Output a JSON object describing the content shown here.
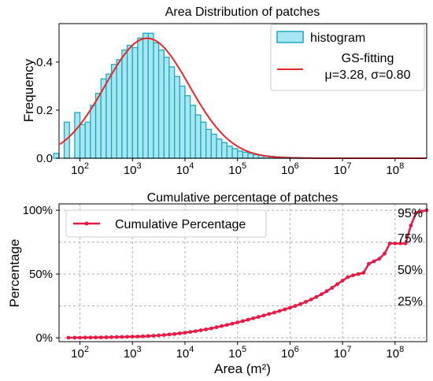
{
  "chart_data": [
    {
      "type": "bar",
      "title": "Area Distribution of patches",
      "ylabel": "Frequency",
      "xscale": "log",
      "xlim": [
        40,
        400000000
      ],
      "ylim": [
        0,
        0.56
      ],
      "xticks": [
        "10^2",
        "10^3",
        "10^4",
        "10^5",
        "10^6",
        "10^7",
        "10^8"
      ],
      "yticks": [
        "0.0",
        "0.2",
        "0.4"
      ],
      "legend_position": "top-right",
      "series": [
        {
          "name": "histogram",
          "color": "#a8e6f2",
          "edge_color": "#1aa9bf",
          "bin_log10_edges": [
            1.5,
            1.6,
            1.7,
            1.8,
            1.9,
            2.0,
            2.1,
            2.2,
            2.3,
            2.4,
            2.5,
            2.6,
            2.7,
            2.8,
            2.9,
            3.0,
            3.1,
            3.2,
            3.3,
            3.4,
            3.5,
            3.6,
            3.7,
            3.8,
            3.9,
            4.0,
            4.1,
            4.2,
            4.3,
            4.4,
            4.5,
            4.6,
            4.7,
            4.8,
            4.9,
            5.0,
            5.1,
            5.2,
            5.3,
            5.4,
            5.5,
            5.6,
            5.7,
            5.8,
            5.9,
            6.0,
            6.1,
            6.2,
            6.3,
            6.4,
            6.5,
            6.6,
            6.7
          ],
          "values": [
            0.02,
            0.0,
            0.15,
            0.0,
            0.19,
            0.14,
            0.15,
            0.22,
            0.27,
            0.33,
            0.35,
            0.39,
            0.41,
            0.45,
            0.47,
            0.46,
            0.5,
            0.52,
            0.52,
            0.48,
            0.45,
            0.42,
            0.38,
            0.34,
            0.3,
            0.26,
            0.22,
            0.18,
            0.15,
            0.12,
            0.1,
            0.08,
            0.065,
            0.05,
            0.04,
            0.03,
            0.025,
            0.02,
            0.015,
            0.012,
            0.01,
            0.008,
            0.006,
            0.005,
            0.004,
            0.003,
            0.003,
            0.002,
            0.002,
            0.001,
            0.001,
            0.001
          ]
        },
        {
          "name": "GS-fitting",
          "name_line2": "μ=3.28, σ=0.80",
          "type": "line",
          "color": "#e8262a",
          "mu": 3.28,
          "sigma": 0.8
        }
      ]
    },
    {
      "type": "line",
      "title": "Cumulative percentage of patches",
      "xlabel": "Area (m²)",
      "ylabel": "Percentage",
      "xscale": "log",
      "xlim": [
        40,
        400000000
      ],
      "ylim": [
        -3,
        105
      ],
      "xticks": [
        "10^2",
        "10^3",
        "10^4",
        "10^5",
        "10^6",
        "10^7",
        "10^8"
      ],
      "yticks": [
        "0%",
        "50%",
        "100%"
      ],
      "legend_position": "top-left",
      "annotations": [
        "95%",
        "75%",
        "50%",
        "25%"
      ],
      "series": [
        {
          "name": "Cumulative Percentage",
          "color": "#e81a45",
          "log10_x": [
            1.78,
            1.9,
            2.0,
            2.1,
            2.2,
            2.3,
            2.4,
            2.5,
            2.6,
            2.7,
            2.8,
            2.9,
            3.0,
            3.1,
            3.2,
            3.3,
            3.4,
            3.5,
            3.6,
            3.7,
            3.8,
            3.9,
            4.0,
            4.1,
            4.2,
            4.3,
            4.4,
            4.5,
            4.6,
            4.7,
            4.8,
            4.9,
            5.0,
            5.1,
            5.2,
            5.3,
            5.4,
            5.5,
            5.6,
            5.7,
            5.8,
            5.9,
            6.0,
            6.1,
            6.2,
            6.3,
            6.4,
            6.5,
            6.6,
            6.7,
            6.8,
            6.9,
            7.0,
            7.1,
            7.2,
            7.3,
            7.4,
            7.5,
            7.6,
            7.7,
            7.8,
            7.9,
            8.0,
            8.1,
            8.2,
            8.3,
            8.4,
            8.5,
            8.6
          ],
          "values": [
            0.1,
            0.1,
            0.1,
            0.2,
            0.2,
            0.3,
            0.3,
            0.4,
            0.5,
            0.6,
            0.7,
            0.8,
            0.9,
            1.0,
            1.2,
            1.4,
            1.6,
            1.9,
            2.2,
            2.6,
            3.0,
            3.5,
            4.0,
            4.6,
            5.2,
            5.9,
            6.6,
            7.4,
            8.3,
            9.2,
            10.1,
            11.1,
            12.1,
            13.1,
            14.2,
            15.3,
            16.4,
            17.5,
            18.7,
            19.8,
            21.0,
            22.3,
            23.6,
            25.0,
            26.5,
            28.2,
            30.0,
            32.0,
            34.2,
            36.6,
            39.2,
            42.0,
            44.8,
            47.5,
            49.0,
            50.0,
            51.0,
            58.0,
            60.0,
            62.0,
            66.0,
            74.0,
            74.0,
            74.0,
            74.0,
            88.0,
            98.0,
            99.0,
            100.0
          ]
        }
      ]
    }
  ]
}
